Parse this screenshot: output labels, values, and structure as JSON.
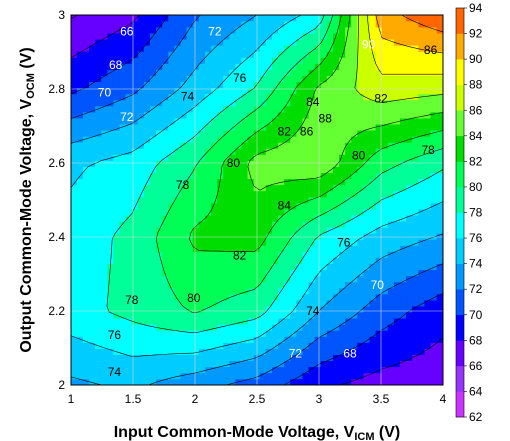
{
  "chart_data": {
    "type": "contour",
    "xlabel": "Input Common-Mode Voltage, V",
    "xlabel_sub": "ICM",
    "xlabel_suffix": " (V)",
    "ylabel": "Output Common-Mode Voltage, V",
    "ylabel_sub": "OCM",
    "ylabel_suffix": " (V)",
    "xlim": [
      1,
      4
    ],
    "ylim": [
      2,
      3
    ],
    "x_ticks": [
      "1",
      "1.5",
      "2",
      "2.5",
      "3",
      "3.5",
      "4"
    ],
    "y_ticks": [
      "2",
      "2.2",
      "2.4",
      "2.6",
      "2.8",
      "3"
    ],
    "grid": true,
    "x": [
      1,
      1.5,
      2,
      2.5,
      3,
      3.5,
      4
    ],
    "y": [
      2,
      2.2,
      2.4,
      2.6,
      2.8,
      3
    ],
    "z": [
      [
        73.6,
        74.4,
        72.8,
        71.2,
        68.4,
        67.2,
        66.6
      ],
      [
        77.2,
        78.6,
        80.2,
        78.8,
        74.0,
        71.0,
        68.8
      ],
      [
        76.8,
        78.6,
        82.4,
        82.8,
        77.8,
        75.2,
        73.8
      ],
      [
        75.6,
        76.8,
        79.8,
        84.8,
        85.6,
        80.8,
        78.4
      ],
      [
        69.6,
        71.6,
        74.8,
        78.2,
        84.4,
        87.2,
        86.6
      ],
      [
        65.8,
        67.6,
        71.8,
        74.0,
        76.8,
        91.2,
        93.6
      ]
    ],
    "colorbar": {
      "levels": [
        62,
        64,
        66,
        68,
        70,
        72,
        74,
        76,
        78,
        80,
        82,
        84,
        86,
        88,
        90,
        92,
        94
      ],
      "labels": [
        "62",
        "64",
        "66",
        "68",
        "70",
        "72",
        "74",
        "76",
        "78",
        "80",
        "82",
        "84",
        "86",
        "88",
        "90",
        "92",
        "94"
      ],
      "colors": [
        "#ff33ff",
        "#cc33ff",
        "#9933ff",
        "#6600ff",
        "#0000ff",
        "#0055ff",
        "#0099ff",
        "#00ccff",
        "#00ffff",
        "#00ff99",
        "#00ff55",
        "#00dd00",
        "#66ff33",
        "#ccff00",
        "#ffff00",
        "#ffaa00",
        "#ff6600",
        "#ff0000"
      ]
    },
    "contour_labels": [
      {
        "text": "66",
        "x": 1.45,
        "y": 2.955
      },
      {
        "text": "68",
        "x": 1.36,
        "y": 2.865
      },
      {
        "text": "70",
        "x": 1.27,
        "y": 2.79
      },
      {
        "text": "72",
        "x": 1.45,
        "y": 2.725
      },
      {
        "text": "72",
        "x": 2.16,
        "y": 2.955
      },
      {
        "text": "74",
        "x": 1.94,
        "y": 2.78
      },
      {
        "text": "76",
        "x": 2.36,
        "y": 2.83
      },
      {
        "text": "78",
        "x": 1.9,
        "y": 2.54
      },
      {
        "text": "80",
        "x": 2.31,
        "y": 2.6
      },
      {
        "text": "82",
        "x": 2.72,
        "y": 2.685
      },
      {
        "text": "84",
        "x": 2.95,
        "y": 2.765
      },
      {
        "text": "86",
        "x": 2.9,
        "y": 2.685
      },
      {
        "text": "88",
        "x": 3.05,
        "y": 2.72
      },
      {
        "text": "90",
        "x": 3.4,
        "y": 2.92
      },
      {
        "text": "86",
        "x": 3.9,
        "y": 2.905
      },
      {
        "text": "82",
        "x": 3.5,
        "y": 2.775
      },
      {
        "text": "80",
        "x": 3.32,
        "y": 2.62
      },
      {
        "text": "78",
        "x": 3.88,
        "y": 2.635
      },
      {
        "text": "84",
        "x": 2.72,
        "y": 2.485
      },
      {
        "text": "82",
        "x": 2.36,
        "y": 2.35
      },
      {
        "text": "80",
        "x": 1.99,
        "y": 2.235
      },
      {
        "text": "78",
        "x": 1.49,
        "y": 2.23
      },
      {
        "text": "76",
        "x": 3.2,
        "y": 2.385
      },
      {
        "text": "74",
        "x": 2.95,
        "y": 2.2
      },
      {
        "text": "76",
        "x": 1.35,
        "y": 2.135
      },
      {
        "text": "74",
        "x": 1.35,
        "y": 2.035
      },
      {
        "text": "72",
        "x": 2.81,
        "y": 2.085
      },
      {
        "text": "70",
        "x": 3.47,
        "y": 2.27
      },
      {
        "text": "68",
        "x": 3.25,
        "y": 2.085
      }
    ]
  }
}
